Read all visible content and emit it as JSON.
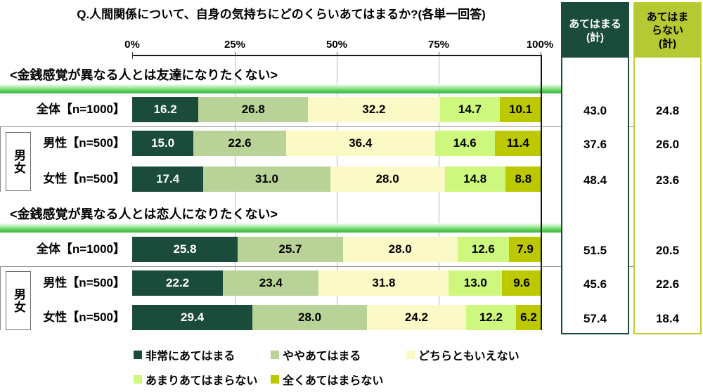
{
  "title": "Q.人間関係について、自身の気持ちにどのくらいあてはまるか?(各単一回答)",
  "axis": {
    "ticks": [
      "0%",
      "25%",
      "50%",
      "75%",
      "100%"
    ]
  },
  "colors": {
    "segments": [
      "#1b4b3a",
      "#b9d297",
      "#fbf9c5",
      "#cdf87d",
      "#bcc800"
    ],
    "segment_text": [
      "#ffffff",
      "#000000",
      "#000000",
      "#000000",
      "#000000"
    ],
    "agree_header_bg": "#1b4b3a",
    "agree_header_text": "#ffffff",
    "disagree_header_bg": "#b5ca32",
    "disagree_header_text": "#000000",
    "section_band_green": "#4cc74c"
  },
  "summary_columns": {
    "agree": {
      "line1": "あてはまる",
      "line2": "(計)"
    },
    "disagree": {
      "line1": "あてはま",
      "line2": "らない",
      "line3": "(計)"
    }
  },
  "group_label": "男女",
  "legend": [
    "非常にあてはまる",
    "ややあてはまる",
    "どちらともいえない",
    "あまりあてはまらない",
    "全くあてはまらない"
  ],
  "sections": [
    {
      "header": "<金銭感覚が異なる人とは友達になりたくない>",
      "rows": [
        {
          "label": "全体【n=1000】",
          "values": [
            16.2,
            26.8,
            32.2,
            14.7,
            10.1
          ],
          "agree": "43.0",
          "disagree": "24.8"
        },
        {
          "label": "男性【n=500】",
          "values": [
            15.0,
            22.6,
            36.4,
            14.6,
            11.4
          ],
          "agree": "37.6",
          "disagree": "26.0"
        },
        {
          "label": "女性【n=500】",
          "values": [
            17.4,
            31.0,
            28.0,
            14.8,
            8.8
          ],
          "agree": "48.4",
          "disagree": "23.6"
        }
      ]
    },
    {
      "header": "<金銭感覚が異なる人とは恋人になりたくない>",
      "rows": [
        {
          "label": "全体【n=1000】",
          "values": [
            25.8,
            25.7,
            28.0,
            12.6,
            7.9
          ],
          "agree": "51.5",
          "disagree": "20.5"
        },
        {
          "label": "男性【n=500】",
          "values": [
            22.2,
            23.4,
            31.8,
            13.0,
            9.6
          ],
          "agree": "45.6",
          "disagree": "22.6"
        },
        {
          "label": "女性【n=500】",
          "values": [
            29.4,
            28.0,
            24.2,
            12.2,
            6.2
          ],
          "agree": "57.4",
          "disagree": "18.4"
        }
      ]
    }
  ],
  "chart_data": {
    "type": "bar",
    "stacked": true,
    "orientation": "horizontal",
    "title": "Q.人間関係について、自身の気持ちにどのくらいあてはまるか?(各単一回答)",
    "xlim": [
      0,
      100
    ],
    "x_ticks": [
      "0%",
      "25%",
      "50%",
      "75%",
      "100%"
    ],
    "grid": true,
    "legend_position": "bottom",
    "sections": [
      "<金銭感覚が異なる人とは友達になりたくない>",
      "<金銭感覚が異なる人とは恋人になりたくない>"
    ],
    "categories": [
      "全体【n=1000】",
      "男性【n=500】",
      "女性【n=500】",
      "全体【n=1000】",
      "男性【n=500】",
      "女性【n=500】"
    ],
    "series": [
      {
        "name": "非常にあてはまる",
        "color": "#1b4b3a",
        "values": [
          16.2,
          15.0,
          17.4,
          25.8,
          22.2,
          29.4
        ]
      },
      {
        "name": "ややあてはまる",
        "color": "#b9d297",
        "values": [
          26.8,
          22.6,
          31.0,
          25.7,
          23.4,
          28.0
        ]
      },
      {
        "name": "どちらともいえない",
        "color": "#fbf9c5",
        "values": [
          32.2,
          36.4,
          28.0,
          28.0,
          31.8,
          24.2
        ]
      },
      {
        "name": "あまりあてはまらない",
        "color": "#cdf87d",
        "values": [
          14.7,
          14.6,
          14.8,
          12.6,
          13.0,
          12.2
        ]
      },
      {
        "name": "全くあてはまらない",
        "color": "#bcc800",
        "values": [
          10.1,
          11.4,
          8.8,
          7.9,
          9.6,
          6.2
        ]
      }
    ],
    "totals": {
      "あてはまる(計)": [
        43.0,
        37.6,
        48.4,
        51.5,
        45.6,
        57.4
      ],
      "あてはまらない(計)": [
        24.8,
        26.0,
        23.6,
        20.5,
        22.6,
        18.4
      ]
    }
  }
}
